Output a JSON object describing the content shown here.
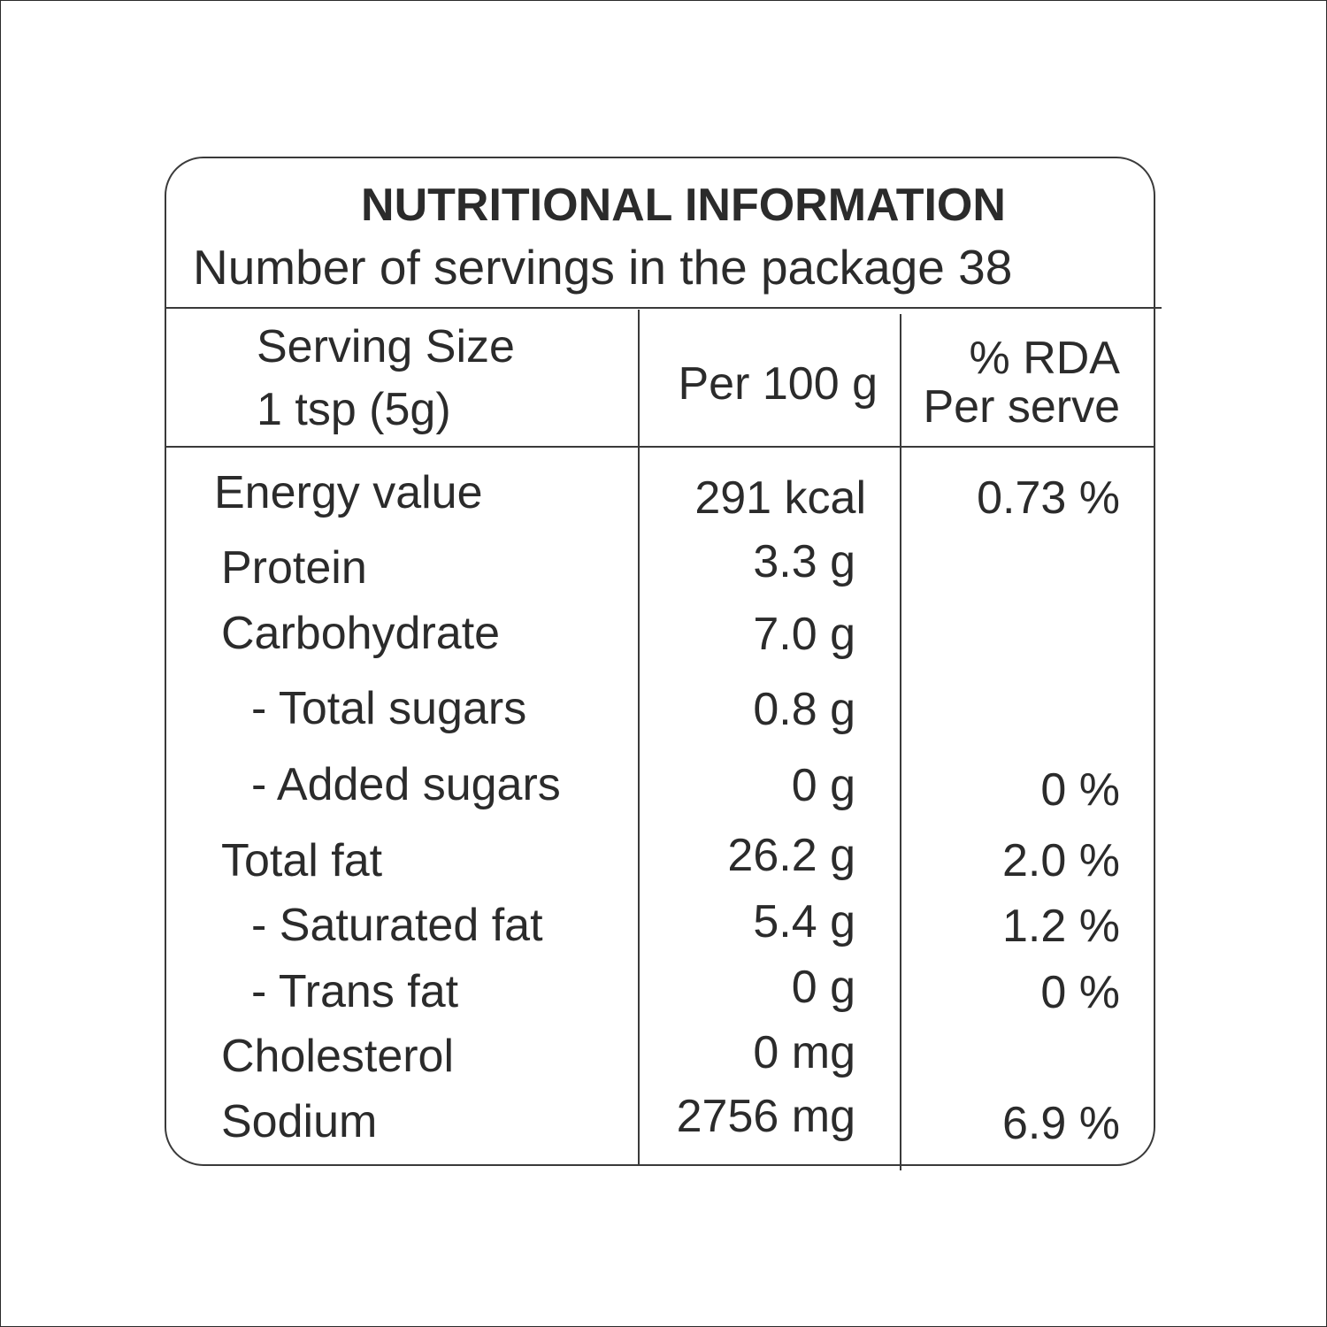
{
  "label": {
    "title": "NUTRITIONAL INFORMATION",
    "servings_line": "Number of servings in the package 38",
    "header": {
      "serving_size_line1": "Serving Size",
      "serving_size_line2": "1 tsp (5g)",
      "per_100g": "Per 100 g",
      "rda_line1": "% RDA",
      "rda_line2": "Per serve"
    },
    "rows": [
      {
        "name": "Energy value",
        "per100": "291 kcal",
        "rda": "0.73 %"
      },
      {
        "name": "Protein",
        "per100": "3.3 g",
        "rda": ""
      },
      {
        "name": "Carbohydrate",
        "per100": "7.0 g",
        "rda": ""
      },
      {
        "name": "- Total sugars",
        "per100": "0.8 g",
        "rda": ""
      },
      {
        "name": "- Added sugars",
        "per100": "0 g",
        "rda": "0 %"
      },
      {
        "name": "Total fat",
        "per100": "26.2 g",
        "rda": "2.0 %"
      },
      {
        "name": "- Saturated fat",
        "per100": "5.4 g",
        "rda": "1.2 %"
      },
      {
        "name": "- Trans fat",
        "per100": "0 g",
        "rda": "0 %"
      },
      {
        "name": "Cholesterol",
        "per100": "0 mg",
        "rda": ""
      },
      {
        "name": "Sodium",
        "per100": "2756 mg",
        "rda": "6.9 %"
      }
    ]
  }
}
